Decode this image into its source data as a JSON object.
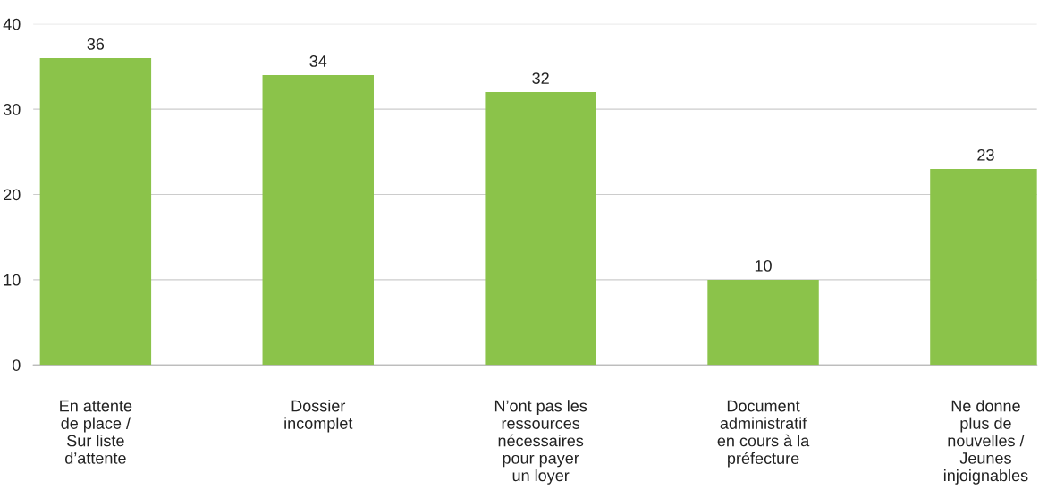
{
  "chart_data": {
    "type": "bar",
    "categories": [
      "En attente\nde place /\nSur liste\nd’attente",
      "Dossier\nincomplet",
      "N’ont pas les\nressources\nnécessaires\npour payer\nun loyer",
      "Document\nadministratif\nen cours à la\npréfecture",
      "Ne donne\nplus de\nnouvelles /\nJeunes\ninjoignables"
    ],
    "values": [
      36,
      34,
      32,
      10,
      23
    ],
    "color": "#8bc34a",
    "ylim": [
      0,
      40
    ],
    "yticks": [
      0,
      10,
      20,
      30,
      40
    ],
    "grid": "y",
    "data_labels": true
  }
}
